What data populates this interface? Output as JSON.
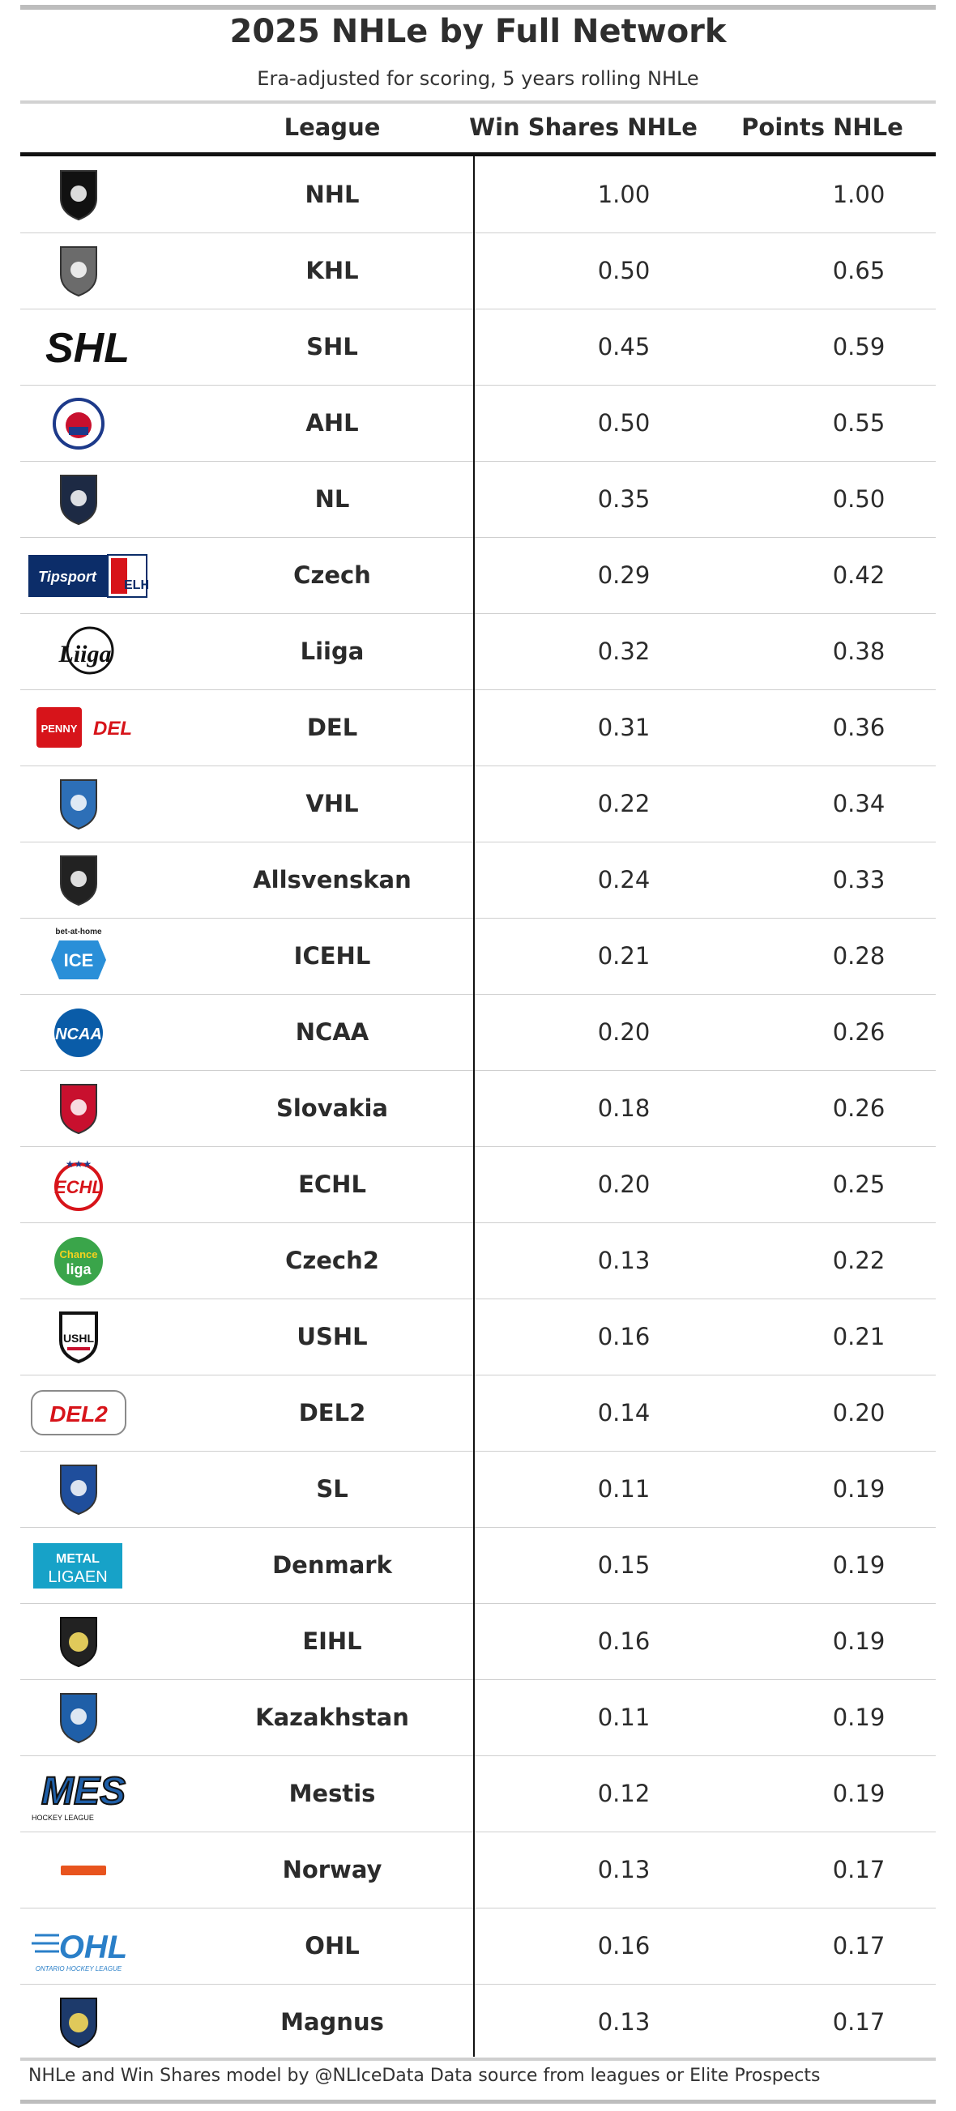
{
  "chart_data": {
    "type": "table",
    "title": "2025 NHLe by Full Network",
    "subtitle": "Era-adjusted for scoring, 5 years rolling NHLe",
    "columns": [
      "League",
      "Win Shares NHLe",
      "Points NHLe"
    ],
    "rows": [
      {
        "league": "NHL",
        "ws": "1.00",
        "pts": "1.00",
        "logo": "nhl-shield",
        "color": "#111111"
      },
      {
        "league": "KHL",
        "ws": "0.50",
        "pts": "0.65",
        "logo": "khl-shield",
        "color": "#6b6b6b"
      },
      {
        "league": "SHL",
        "ws": "0.45",
        "pts": "0.59",
        "logo": "SHL",
        "color": "#111111"
      },
      {
        "league": "AHL",
        "ws": "0.50",
        "pts": "0.55",
        "logo": "ahl-circle",
        "color": "#c8102e"
      },
      {
        "league": "NL",
        "ws": "0.35",
        "pts": "0.50",
        "logo": "nl-shield",
        "color": "#1d2a44"
      },
      {
        "league": "Czech",
        "ws": "0.29",
        "pts": "0.42",
        "logo": "Tipsport ELH",
        "color": "#0c2d69"
      },
      {
        "league": "Liiga",
        "ws": "0.32",
        "pts": "0.38",
        "logo": "Liiga",
        "color": "#111111"
      },
      {
        "league": "DEL",
        "ws": "0.31",
        "pts": "0.36",
        "logo": "PENNY DEL",
        "color": "#d7141a"
      },
      {
        "league": "VHL",
        "ws": "0.22",
        "pts": "0.34",
        "logo": "vhl-shield",
        "color": "#2d6fb7"
      },
      {
        "league": "Allsvenskan",
        "ws": "0.24",
        "pts": "0.33",
        "logo": "allsvenskan-shield",
        "color": "#222222"
      },
      {
        "league": "ICEHL",
        "ws": "0.21",
        "pts": "0.28",
        "logo": "ICE",
        "color": "#2a8fd8"
      },
      {
        "league": "NCAA",
        "ws": "0.20",
        "pts": "0.26",
        "logo": "NCAA",
        "color": "#0a5ca8"
      },
      {
        "league": "Slovakia",
        "ws": "0.18",
        "pts": "0.26",
        "logo": "slovakia-shield",
        "color": "#c8102e"
      },
      {
        "league": "ECHL",
        "ws": "0.20",
        "pts": "0.25",
        "logo": "ECHL",
        "color": "#d7141a"
      },
      {
        "league": "Czech2",
        "ws": "0.13",
        "pts": "0.22",
        "logo": "Chance liga",
        "color": "#3aa54a"
      },
      {
        "league": "USHL",
        "ws": "0.16",
        "pts": "0.21",
        "logo": "USHL",
        "color": "#111111"
      },
      {
        "league": "DEL2",
        "ws": "0.14",
        "pts": "0.20",
        "logo": "DEL2",
        "color": "#d7141a"
      },
      {
        "league": "SL",
        "ws": "0.11",
        "pts": "0.19",
        "logo": "sl-shield",
        "color": "#1f4e9c"
      },
      {
        "league": "Denmark",
        "ws": "0.15",
        "pts": "0.19",
        "logo": "METAL LIGAEN",
        "color": "#17a2c8"
      },
      {
        "league": "EIHL",
        "ws": "0.16",
        "pts": "0.19",
        "logo": "eihl-badge",
        "color": "#222222"
      },
      {
        "league": "Kazakhstan",
        "ws": "0.11",
        "pts": "0.19",
        "logo": "kazakhstan-shield",
        "color": "#1f5fa8"
      },
      {
        "league": "Mestis",
        "ws": "0.12",
        "pts": "0.19",
        "logo": "MES",
        "color": "#1f5fa8"
      },
      {
        "league": "Norway",
        "ws": "0.13",
        "pts": "0.17",
        "logo": "norway-wordmark",
        "color": "#e8541e"
      },
      {
        "league": "OHL",
        "ws": "0.16",
        "pts": "0.17",
        "logo": "OHL",
        "color": "#2a7fc8"
      },
      {
        "league": "Magnus",
        "ws": "0.13",
        "pts": "0.17",
        "logo": "magnus-badge",
        "color": "#1d3a6b"
      }
    ]
  },
  "footer": "NHLe and Win Shares model by @NLIceData Data source from leagues or Elite Prospects"
}
